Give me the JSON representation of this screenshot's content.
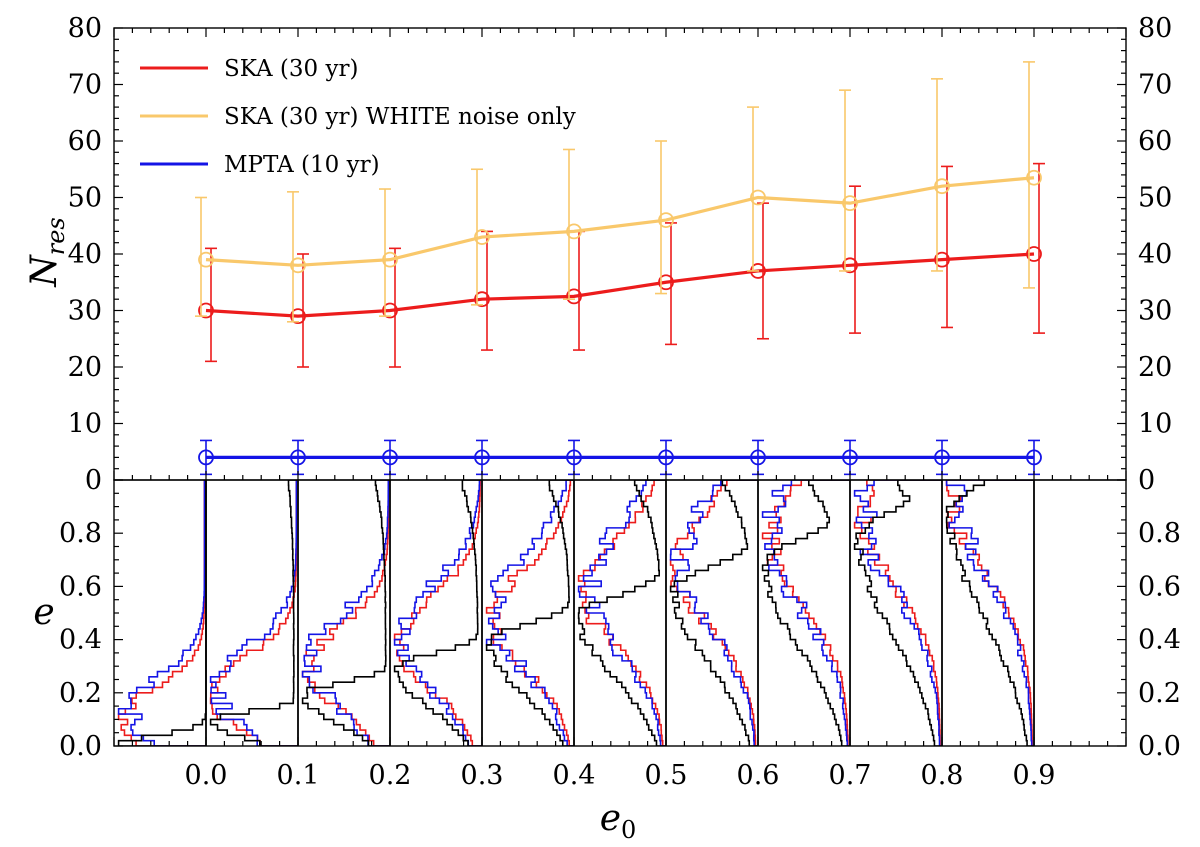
{
  "chart_data": [
    {
      "type": "line",
      "panel": "top",
      "ylabel": "N_res",
      "ylim": [
        0,
        80
      ],
      "yticks": [
        0,
        10,
        20,
        30,
        40,
        50,
        60,
        70,
        80
      ],
      "yticks_right": [
        0,
        10,
        20,
        30,
        40,
        50,
        60,
        70,
        80
      ],
      "legend_position": "top-left",
      "series": [
        {
          "name": "SKA (30 yr)",
          "color": "#ec1c1c",
          "x": [
            0.0,
            0.1,
            0.2,
            0.3,
            0.4,
            0.5,
            0.6,
            0.7,
            0.8,
            0.9
          ],
          "y": [
            30,
            29,
            30,
            32,
            32.5,
            35,
            37,
            38,
            39,
            40
          ],
          "yerr_low": [
            21,
            20,
            20,
            23,
            23,
            24,
            25,
            26,
            27,
            26
          ],
          "yerr_high": [
            41,
            40,
            41,
            44,
            44,
            45.5,
            49,
            52,
            55.5,
            56
          ]
        },
        {
          "name": "SKA (30 yr) WHITE noise only",
          "color": "#f9c86b",
          "x": [
            0.0,
            0.1,
            0.2,
            0.3,
            0.4,
            0.5,
            0.6,
            0.7,
            0.8,
            0.9
          ],
          "y": [
            39,
            38,
            39,
            43,
            44,
            46,
            50,
            49,
            52,
            53.5
          ],
          "yerr_low": [
            29,
            28,
            29,
            31,
            32,
            33,
            37,
            37,
            37,
            34
          ],
          "yerr_high": [
            50,
            51,
            51.5,
            55,
            58.5,
            60,
            66,
            69,
            71,
            74
          ]
        },
        {
          "name": "MPTA (10 yr)",
          "color": "#1414e6",
          "x": [
            0.0,
            0.1,
            0.2,
            0.3,
            0.4,
            0.5,
            0.6,
            0.7,
            0.8,
            0.9
          ],
          "y": [
            4,
            4,
            4,
            4,
            4,
            4,
            4,
            4,
            4,
            4
          ],
          "yerr_low": [
            1,
            1,
            1,
            1,
            1,
            1,
            1,
            1,
            1,
            1
          ],
          "yerr_high": [
            7,
            7,
            7,
            7,
            7,
            7,
            7,
            7,
            7,
            7
          ]
        }
      ]
    },
    {
      "type": "histogram",
      "panel": "bottom",
      "xlabel": "e_0",
      "ylabel": "e",
      "xlim": [
        -0.1,
        1.0
      ],
      "ylim": [
        0,
        1.0
      ],
      "xticks": [
        "0.0",
        "0.1",
        "0.2",
        "0.3",
        "0.4",
        "0.5",
        "0.6",
        "0.7",
        "0.8",
        "0.9"
      ],
      "yticks": [
        "0.0",
        "0.2",
        "0.4",
        "0.6",
        "0.8"
      ],
      "yticks_right": [
        "0.0",
        "0.2",
        "0.4",
        "0.6",
        "0.8"
      ],
      "description_colors": {
        "prior": "#000000",
        "ska": "#ec1c1c",
        "mpta": "#1414e6"
      },
      "e0_columns": [
        0.0,
        0.1,
        0.2,
        0.3,
        0.4,
        0.5,
        0.6,
        0.7,
        0.8,
        0.9
      ]
    }
  ]
}
